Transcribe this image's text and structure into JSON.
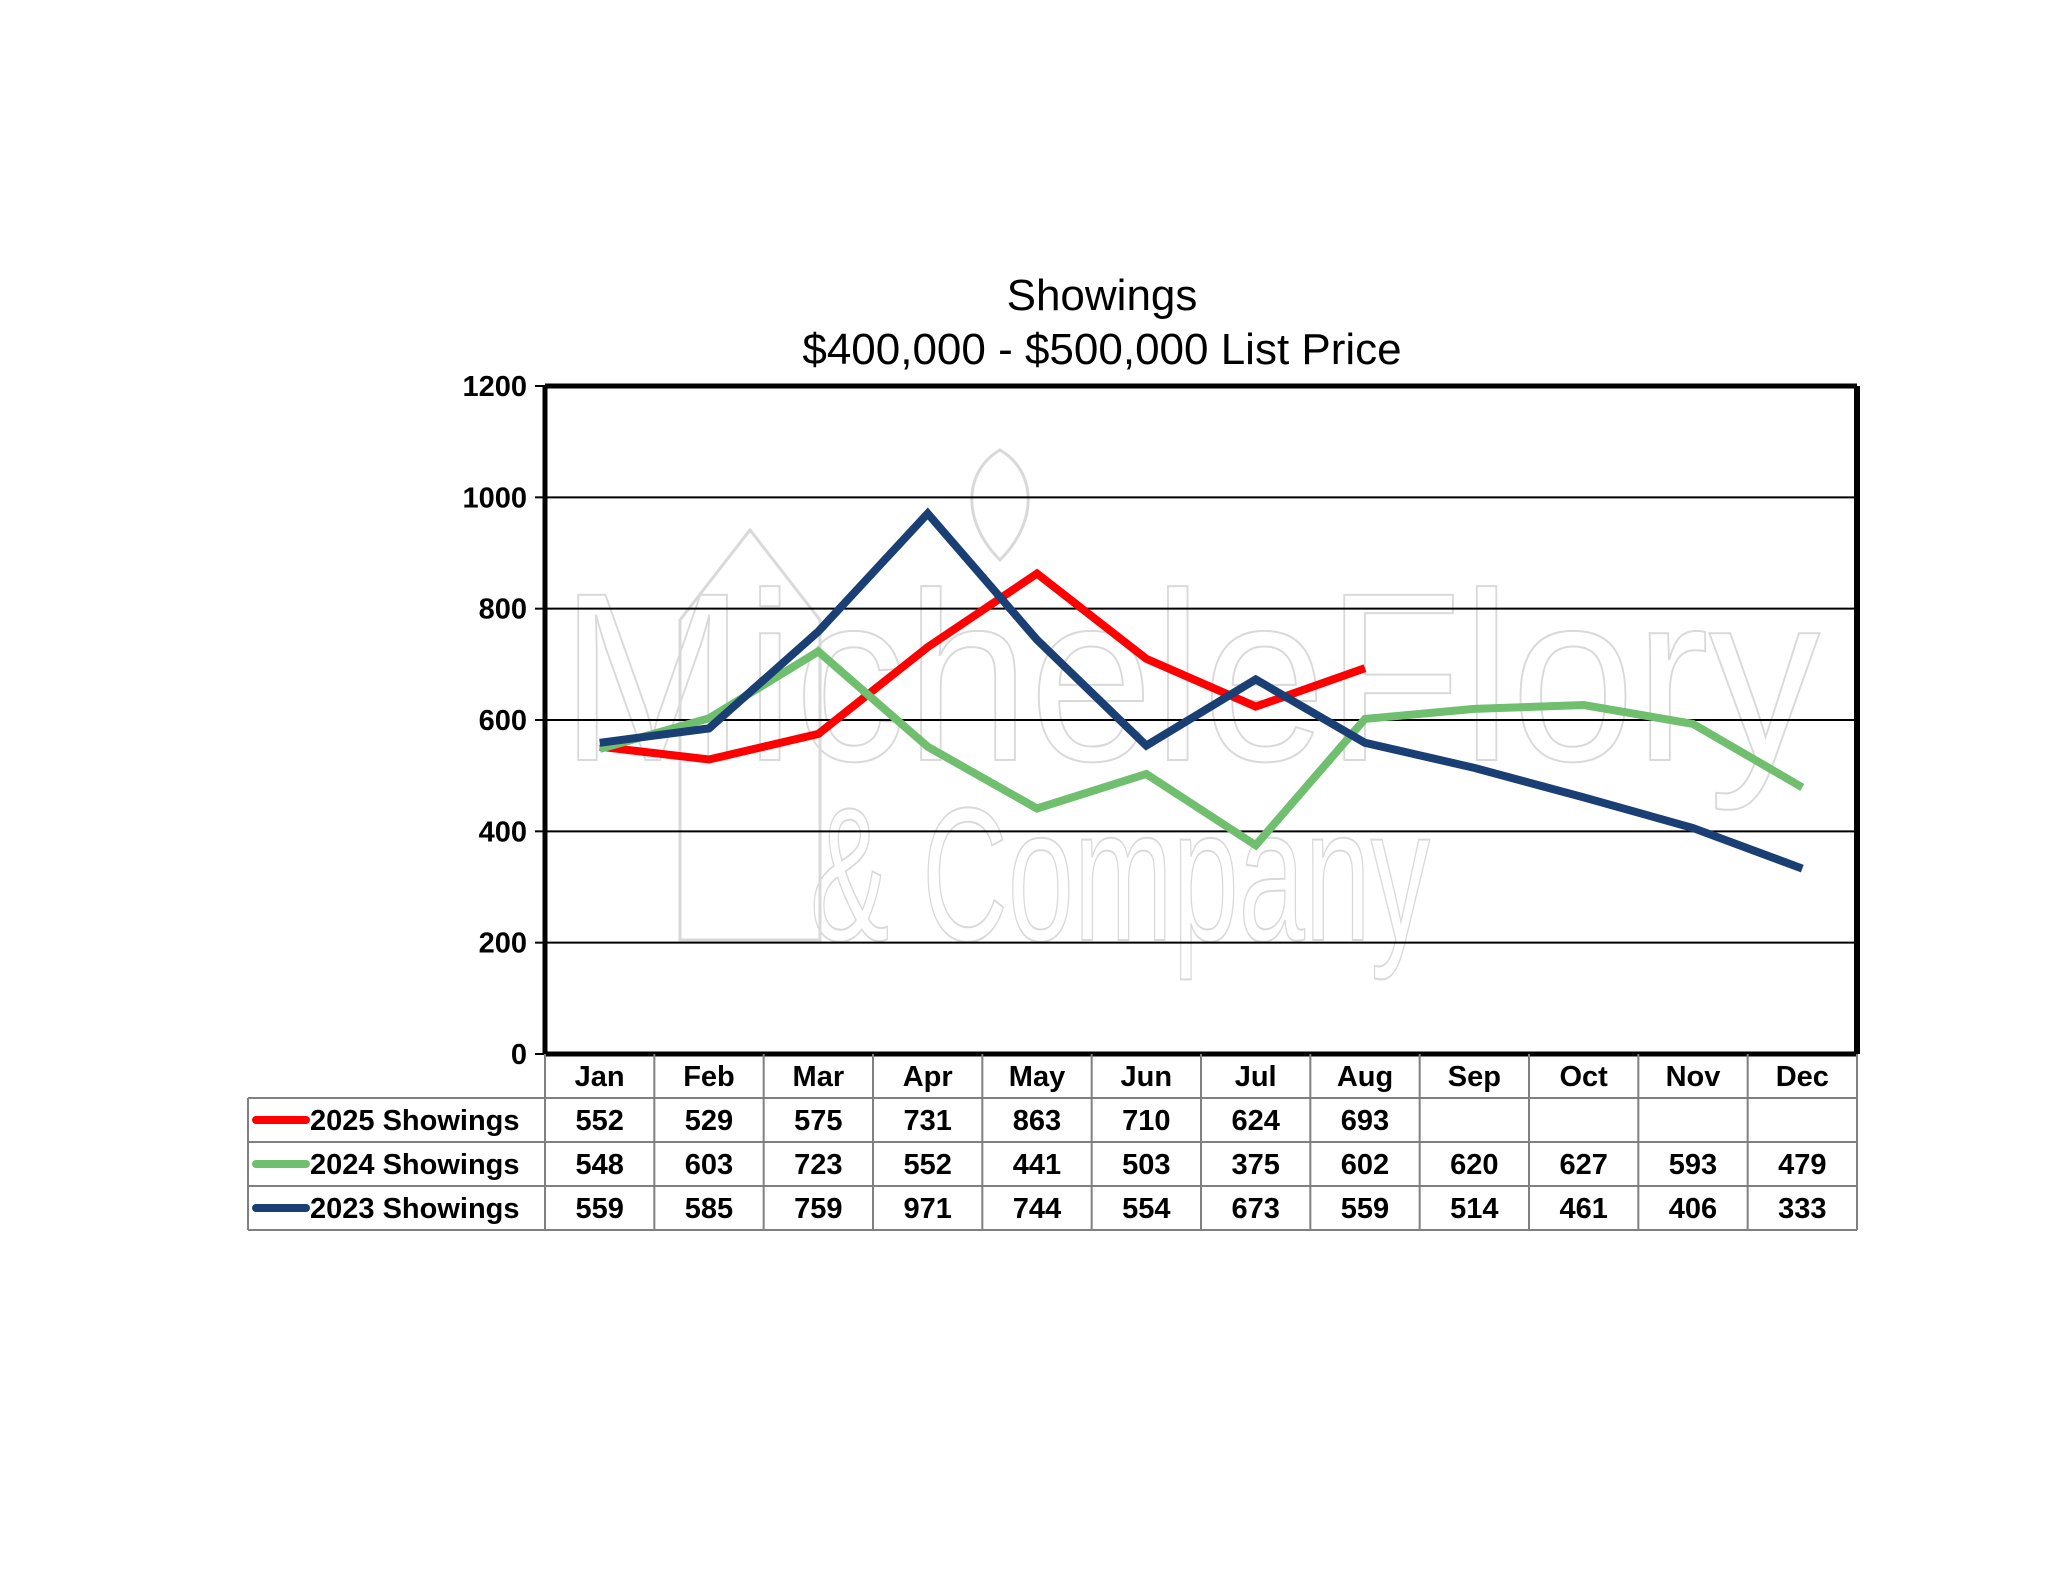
{
  "chart_data": {
    "type": "line",
    "title": "Showings",
    "subtitle": "$400,000 - $500,000 List Price",
    "categories": [
      "Jan",
      "Feb",
      "Mar",
      "Apr",
      "May",
      "Jun",
      "Jul",
      "Aug",
      "Sep",
      "Oct",
      "Nov",
      "Dec"
    ],
    "ylim": [
      0,
      1200
    ],
    "yticks": [
      0,
      200,
      400,
      600,
      800,
      1000,
      1200
    ],
    "grid": true,
    "legend": "data-table-below",
    "series": [
      {
        "name": "2025 Showings",
        "color": "#ff0000",
        "values": [
          552,
          529,
          575,
          731,
          863,
          710,
          624,
          693,
          null,
          null,
          null,
          null
        ]
      },
      {
        "name": "2024 Showings",
        "color": "#6fbf6f",
        "values": [
          548,
          603,
          723,
          552,
          441,
          503,
          375,
          602,
          620,
          627,
          593,
          479
        ]
      },
      {
        "name": "2023 Showings",
        "color": "#1a3f74",
        "values": [
          559,
          585,
          759,
          971,
          744,
          554,
          673,
          559,
          514,
          461,
          406,
          333
        ]
      }
    ]
  },
  "watermark": {
    "line1": "MicheleFlory",
    "line2": "& Company"
  }
}
